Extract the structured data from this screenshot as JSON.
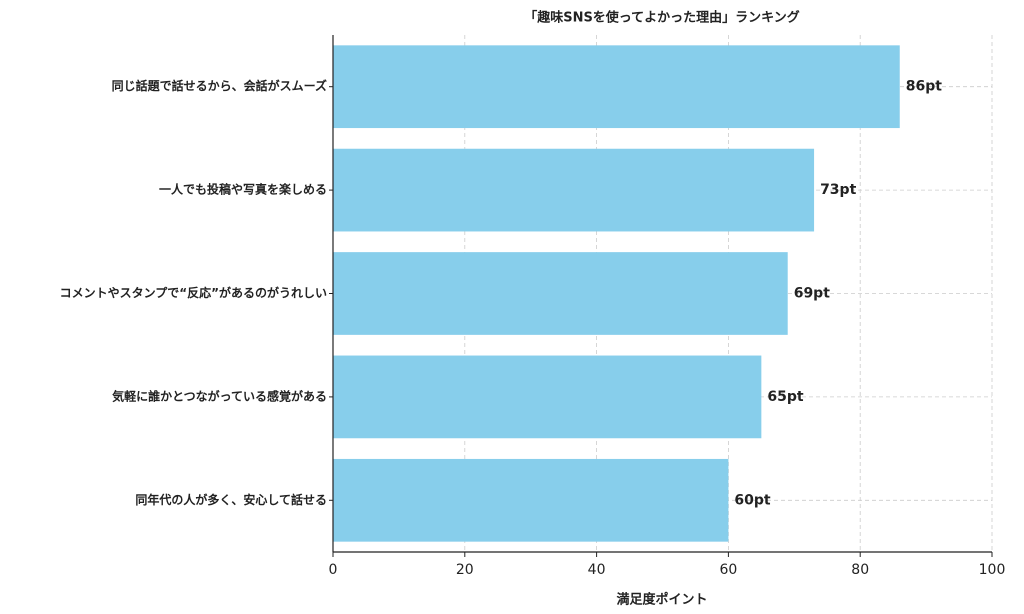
{
  "chart_data": {
    "type": "barh",
    "title": "「趣味SNSを使ってよかった理由」ランキング",
    "xlabel": "満足度ポイント",
    "categories": [
      "同じ話題で話せるから、会話がスムーズ",
      "一人でも投稿や写真を楽しめる",
      "コメントやスタンプで“反応”があるのがうれしい",
      "気軽に誰かとつながっている感覚がある",
      "同年代の人が多く、安心して話せる"
    ],
    "values": [
      86,
      73,
      69,
      65,
      60
    ],
    "value_labels": [
      "86pt",
      "73pt",
      "69pt",
      "65pt",
      "60pt"
    ],
    "color": "#87ceeb",
    "xlim": [
      0,
      100
    ],
    "xticks": [
      0,
      20,
      40,
      60,
      80,
      100
    ],
    "grid": true
  }
}
